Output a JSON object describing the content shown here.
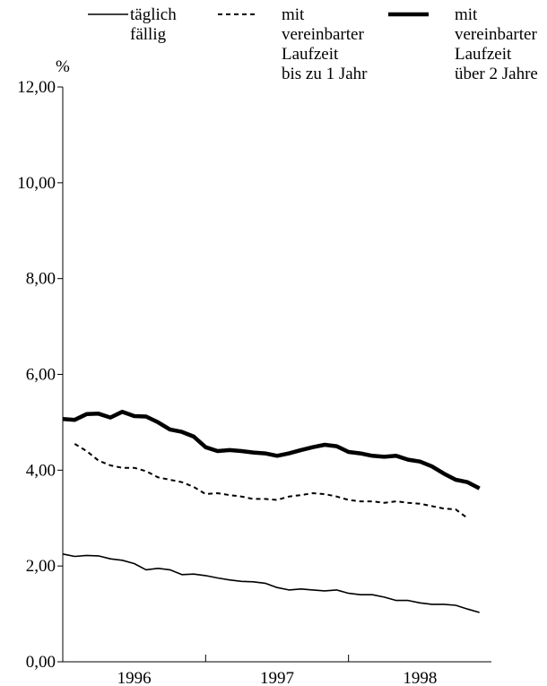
{
  "chart_data": {
    "type": "line",
    "title": "",
    "xlabel": "",
    "ylabel": "%",
    "ylim": [
      0,
      12
    ],
    "y_ticks": [
      "0,00",
      "2,00",
      "4,00",
      "6,00",
      "8,00",
      "10,00",
      "12,00"
    ],
    "x_ticks": [
      "1996",
      "1997",
      "1998"
    ],
    "grid": false,
    "legend_position": "top",
    "x_range": [
      0,
      36
    ],
    "series": [
      {
        "name": "täglich fällig",
        "name_lines": [
          "täglich",
          "fällig"
        ],
        "style": "thin-solid",
        "color": "#000000",
        "x": [
          0,
          1,
          2,
          3,
          4,
          5,
          6,
          7,
          8,
          9,
          10,
          11,
          12,
          13,
          14,
          15,
          16,
          17,
          18,
          19,
          20,
          21,
          22,
          23,
          24,
          25,
          26,
          27,
          28,
          29,
          30,
          31,
          32,
          33,
          34,
          35
        ],
        "values": [
          2.25,
          2.2,
          2.22,
          2.21,
          2.15,
          2.12,
          2.05,
          1.92,
          1.95,
          1.92,
          1.82,
          1.83,
          1.8,
          1.75,
          1.71,
          1.68,
          1.67,
          1.64,
          1.55,
          1.5,
          1.52,
          1.5,
          1.48,
          1.5,
          1.43,
          1.4,
          1.4,
          1.35,
          1.28,
          1.28,
          1.23,
          1.2,
          1.2,
          1.18,
          1.1,
          1.03
        ]
      },
      {
        "name": "mit vereinbarter Laufzeit bis zu 1 Jahr",
        "name_lines": [
          "mit",
          "vereinbarter",
          "Laufzeit",
          "bis zu 1 Jahr"
        ],
        "style": "dashed",
        "color": "#000000",
        "x": [
          1,
          2,
          3,
          4,
          5,
          6,
          7,
          8,
          9,
          10,
          11,
          12,
          13,
          14,
          15,
          16,
          17,
          18,
          19,
          20,
          21,
          22,
          23,
          24,
          25,
          26,
          27,
          28,
          29,
          30,
          31,
          32,
          33,
          34
        ],
        "values": [
          4.55,
          4.4,
          4.2,
          4.1,
          4.05,
          4.05,
          3.98,
          3.85,
          3.8,
          3.75,
          3.65,
          3.5,
          3.52,
          3.48,
          3.45,
          3.4,
          3.4,
          3.38,
          3.45,
          3.48,
          3.52,
          3.5,
          3.45,
          3.38,
          3.35,
          3.35,
          3.32,
          3.35,
          3.32,
          3.3,
          3.25,
          3.2,
          3.18,
          3.0
        ]
      },
      {
        "name": "mit vereinbarter Laufzeit über 2 Jahre",
        "name_lines": [
          "mit",
          "vereinbarter",
          "Laufzeit",
          "über 2 Jahre"
        ],
        "style": "thick-solid",
        "color": "#000000",
        "x": [
          0,
          1,
          2,
          3,
          4,
          5,
          6,
          7,
          8,
          9,
          10,
          11,
          12,
          13,
          14,
          15,
          16,
          17,
          18,
          19,
          20,
          21,
          22,
          23,
          24,
          25,
          26,
          27,
          28,
          29,
          30,
          31,
          32,
          33,
          34,
          35
        ],
        "values": [
          5.07,
          5.05,
          5.17,
          5.18,
          5.1,
          5.22,
          5.13,
          5.12,
          5.0,
          4.85,
          4.8,
          4.7,
          4.48,
          4.4,
          4.42,
          4.4,
          4.37,
          4.35,
          4.3,
          4.35,
          4.42,
          4.48,
          4.53,
          4.5,
          4.38,
          4.35,
          4.3,
          4.28,
          4.3,
          4.22,
          4.18,
          4.08,
          3.93,
          3.8,
          3.75,
          3.62
        ]
      }
    ]
  }
}
